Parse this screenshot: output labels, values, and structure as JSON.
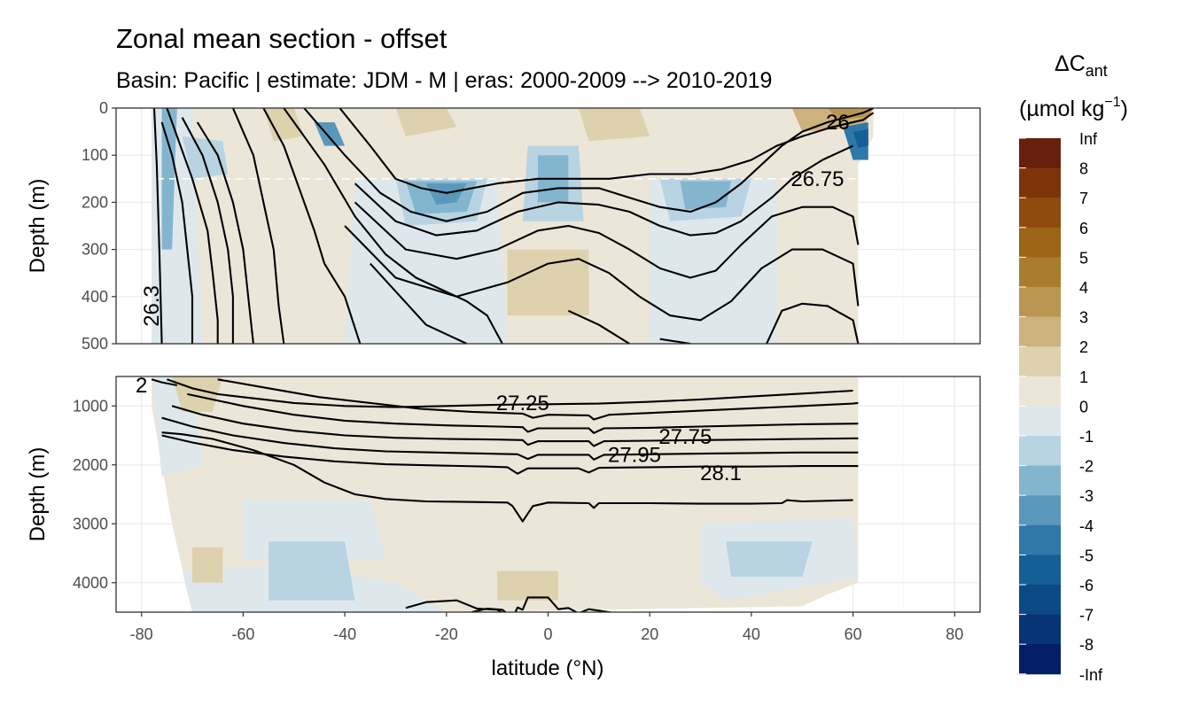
{
  "chart_data": {
    "type": "contour",
    "title": "Zonal mean section - offset",
    "subtitle": "Basin: Pacific | estimate: JDM - M | eras: 2000-2009 --> 2010-2019",
    "xlabel": "latitude (°N)",
    "ylabel": "Depth (m)",
    "x_ticks": [
      -80,
      -60,
      -40,
      -20,
      0,
      20,
      40,
      60,
      80
    ],
    "xlim": [
      -85,
      85
    ],
    "panels": [
      {
        "name": "upper",
        "ylim": [
          0,
          500
        ],
        "y_ticks": [
          0,
          100,
          200,
          300,
          400,
          500
        ],
        "y_reversed": true
      },
      {
        "name": "lower",
        "ylim": [
          500,
          4500
        ],
        "y_ticks": [
          1000,
          2000,
          3000,
          4000
        ],
        "y_reversed": true
      }
    ],
    "reference_line": {
      "depth": 150,
      "style": "dashed",
      "color": "#ffffff"
    },
    "legend": {
      "title_main": "ΔC",
      "title_sub": "ant",
      "units_main": "(µmol kg",
      "units_sup": "−1",
      "units_close": ")",
      "labels": [
        "Inf",
        "8",
        "7",
        "6",
        "5",
        "4",
        "3",
        "2",
        "1",
        "0",
        "-1",
        "-2",
        "-3",
        "-4",
        "-5",
        "-6",
        "-7",
        "-8",
        "-Inf"
      ],
      "colors": [
        "#67200d",
        "#7e3409",
        "#8f4b0e",
        "#9b6417",
        "#a87d2e",
        "#ba9652",
        "#cdb27e",
        "#ded1ad",
        "#ece6d9",
        "#dee8ec",
        "#b8d3e2",
        "#84b5cf",
        "#5a98bb",
        "#2f79a9",
        "#146096",
        "#0c4a86",
        "#073475",
        "#031e66"
      ]
    },
    "contour_labels": [
      {
        "text": "26",
        "panel": "upper",
        "lat": 57,
        "depth": 30
      },
      {
        "text": "26.75",
        "panel": "upper",
        "lat": 53,
        "depth": 150
      },
      {
        "text": "26.3",
        "panel": "upper",
        "lat": -78,
        "depth": 420
      },
      {
        "text": "27.25",
        "panel": "lower",
        "lat": -5,
        "depth": 950
      },
      {
        "text": "27.75",
        "panel": "lower",
        "lat": 27,
        "depth": 1520
      },
      {
        "text": "27.95",
        "panel": "lower",
        "lat": 17,
        "depth": 1830
      },
      {
        "text": "28.1",
        "panel": "lower",
        "lat": 34,
        "depth": 2140
      },
      {
        "text": "2",
        "panel": "lower",
        "lat": -80,
        "depth": 650
      }
    ],
    "contours_upper": [
      [
        [
          -77.5,
          0
        ],
        [
          -77,
          120
        ],
        [
          -76.5,
          300
        ],
        [
          -76,
          500
        ]
      ],
      [
        [
          -76,
          30
        ],
        [
          -74,
          100
        ],
        [
          -72,
          200
        ],
        [
          -71,
          300
        ],
        [
          -70,
          400
        ],
        [
          -70,
          500
        ]
      ],
      [
        [
          -75,
          0
        ],
        [
          -73,
          60
        ],
        [
          -70,
          150
        ],
        [
          -67,
          260
        ],
        [
          -66,
          350
        ],
        [
          -65,
          450
        ],
        [
          -65,
          500
        ]
      ],
      [
        [
          -72,
          20
        ],
        [
          -68,
          100
        ],
        [
          -65,
          200
        ],
        [
          -63,
          300
        ],
        [
          -62,
          400
        ],
        [
          -62,
          500
        ]
      ],
      [
        [
          -69,
          30
        ],
        [
          -65,
          100
        ],
        [
          -62,
          200
        ],
        [
          -60,
          300
        ],
        [
          -59,
          400
        ],
        [
          -58,
          500
        ]
      ],
      [
        [
          -62,
          0
        ],
        [
          -58,
          100
        ],
        [
          -56,
          200
        ],
        [
          -54,
          300
        ],
        [
          -53,
          420
        ],
        [
          -52,
          500
        ]
      ],
      [
        [
          -56,
          0
        ],
        [
          -52,
          80
        ],
        [
          -49,
          170
        ],
        [
          -46,
          260
        ],
        [
          -44,
          330
        ],
        [
          -40,
          400
        ],
        [
          -37,
          500
        ]
      ],
      [
        [
          -52,
          0
        ],
        [
          -44,
          120
        ],
        [
          -38,
          230
        ],
        [
          -32,
          310
        ],
        [
          -26,
          360
        ],
        [
          -20,
          390
        ],
        [
          -16,
          410
        ],
        [
          -12,
          440
        ],
        [
          -9,
          500
        ]
      ],
      [
        [
          -48,
          0
        ],
        [
          -40,
          100
        ],
        [
          -33,
          180
        ],
        [
          -27,
          220
        ],
        [
          -20,
          240
        ],
        [
          -12,
          220
        ],
        [
          -5,
          180
        ],
        [
          2,
          170
        ],
        [
          10,
          170
        ],
        [
          16,
          190
        ],
        [
          22,
          210
        ],
        [
          28,
          220
        ],
        [
          33,
          200
        ],
        [
          38,
          160
        ],
        [
          42,
          120
        ],
        [
          46,
          80
        ],
        [
          50,
          50
        ],
        [
          55,
          30
        ],
        [
          62,
          10
        ],
        [
          64,
          0
        ]
      ],
      [
        [
          -41,
          0
        ],
        [
          -35,
          80
        ],
        [
          -30,
          150
        ],
        [
          -25,
          170
        ],
        [
          -20,
          180
        ],
        [
          -10,
          160
        ],
        [
          -2,
          150
        ],
        [
          5,
          150
        ],
        [
          12,
          150
        ],
        [
          20,
          140
        ],
        [
          28,
          140
        ],
        [
          34,
          130
        ],
        [
          40,
          110
        ],
        [
          45,
          80
        ],
        [
          50,
          60
        ],
        [
          56,
          40
        ],
        [
          62,
          25
        ],
        [
          64,
          10
        ]
      ],
      [
        [
          -38,
          160
        ],
        [
          -30,
          240
        ],
        [
          -22,
          270
        ],
        [
          -14,
          260
        ],
        [
          -6,
          220
        ],
        [
          2,
          200
        ],
        [
          10,
          205
        ],
        [
          16,
          220
        ],
        [
          22,
          250
        ],
        [
          28,
          270
        ],
        [
          33,
          265
        ],
        [
          38,
          240
        ],
        [
          44,
          190
        ],
        [
          48,
          150
        ],
        [
          54,
          110
        ],
        [
          58,
          90
        ],
        [
          60,
          80
        ]
      ],
      [
        [
          -38,
          200
        ],
        [
          -28,
          300
        ],
        [
          -18,
          320
        ],
        [
          -10,
          300
        ],
        [
          -2,
          260
        ],
        [
          4,
          250
        ],
        [
          10,
          265
        ],
        [
          16,
          300
        ],
        [
          22,
          340
        ],
        [
          28,
          360
        ],
        [
          33,
          345
        ],
        [
          38,
          290
        ],
        [
          44,
          230
        ],
        [
          50,
          210
        ],
        [
          56,
          210
        ],
        [
          60,
          230
        ],
        [
          61,
          290
        ]
      ],
      [
        [
          -40,
          250
        ],
        [
          -30,
          360
        ],
        [
          -18,
          400
        ],
        [
          -8,
          370
        ],
        [
          0,
          330
        ],
        [
          6,
          320
        ],
        [
          12,
          350
        ],
        [
          18,
          400
        ],
        [
          24,
          440
        ],
        [
          30,
          450
        ],
        [
          36,
          410
        ],
        [
          42,
          340
        ],
        [
          48,
          300
        ],
        [
          54,
          300
        ],
        [
          60,
          330
        ],
        [
          61,
          420
        ]
      ],
      [
        [
          -35,
          330
        ],
        [
          -24,
          460
        ],
        [
          -16,
          500
        ]
      ],
      [
        [
          4,
          430
        ],
        [
          10,
          460
        ],
        [
          16,
          500
        ]
      ],
      [
        [
          22,
          490
        ],
        [
          28,
          500
        ]
      ],
      [
        [
          43,
          500
        ],
        [
          46,
          430
        ],
        [
          50,
          415
        ],
        [
          55,
          420
        ],
        [
          60,
          450
        ],
        [
          61,
          500
        ]
      ]
    ],
    "contours_lower": [
      [
        [
          -78,
          550
        ],
        [
          -76,
          600
        ],
        [
          -73,
          650
        ]
      ],
      [
        [
          -75,
          550
        ],
        [
          -70,
          700
        ],
        [
          -65,
          800
        ],
        [
          -60,
          850
        ],
        [
          -55,
          900
        ],
        [
          -50,
          950
        ],
        [
          -40,
          1000
        ],
        [
          -30,
          1020
        ],
        [
          -20,
          1000
        ],
        [
          -10,
          980
        ],
        [
          0,
          970
        ],
        [
          10,
          960
        ],
        [
          20,
          930
        ],
        [
          30,
          890
        ],
        [
          40,
          840
        ],
        [
          50,
          790
        ],
        [
          60,
          740
        ]
      ],
      [
        [
          -65,
          550
        ],
        [
          -55,
          700
        ],
        [
          -45,
          850
        ],
        [
          -35,
          950
        ],
        [
          -25,
          1050
        ],
        [
          -15,
          1100
        ],
        [
          -5,
          1130
        ],
        [
          -3,
          1200
        ],
        [
          0,
          1150
        ],
        [
          8,
          1160
        ],
        [
          9,
          1230
        ],
        [
          12,
          1150
        ],
        [
          20,
          1120
        ],
        [
          30,
          1080
        ],
        [
          40,
          1040
        ],
        [
          50,
          1000
        ],
        [
          60,
          960
        ],
        [
          61,
          950
        ]
      ],
      [
        [
          -71,
          800
        ],
        [
          -60,
          1000
        ],
        [
          -50,
          1150
        ],
        [
          -40,
          1250
        ],
        [
          -30,
          1300
        ],
        [
          -20,
          1330
        ],
        [
          -10,
          1350
        ],
        [
          -5,
          1360
        ],
        [
          -4,
          1440
        ],
        [
          -2,
          1380
        ],
        [
          8,
          1380
        ],
        [
          9,
          1460
        ],
        [
          11,
          1380
        ],
        [
          20,
          1370
        ],
        [
          30,
          1350
        ],
        [
          40,
          1330
        ],
        [
          50,
          1310
        ],
        [
          61,
          1300
        ]
      ],
      [
        [
          -74,
          1000
        ],
        [
          -68,
          1150
        ],
        [
          -60,
          1300
        ],
        [
          -50,
          1420
        ],
        [
          -40,
          1500
        ],
        [
          -30,
          1540
        ],
        [
          -20,
          1560
        ],
        [
          -10,
          1570
        ],
        [
          -5,
          1580
        ],
        [
          -4,
          1660
        ],
        [
          -2,
          1600
        ],
        [
          8,
          1600
        ],
        [
          9,
          1680
        ],
        [
          11,
          1600
        ],
        [
          20,
          1590
        ],
        [
          30,
          1580
        ],
        [
          40,
          1570
        ],
        [
          50,
          1560
        ],
        [
          61,
          1550
        ]
      ],
      [
        [
          -76,
          1200
        ],
        [
          -70,
          1350
        ],
        [
          -62,
          1500
        ],
        [
          -52,
          1630
        ],
        [
          -42,
          1720
        ],
        [
          -32,
          1770
        ],
        [
          -22,
          1790
        ],
        [
          -12,
          1810
        ],
        [
          -6,
          1820
        ],
        [
          -4,
          1900
        ],
        [
          -2,
          1830
        ],
        [
          8,
          1830
        ],
        [
          9,
          1910
        ],
        [
          11,
          1830
        ],
        [
          20,
          1820
        ],
        [
          30,
          1810
        ],
        [
          40,
          1800
        ],
        [
          50,
          1790
        ],
        [
          61,
          1790
        ]
      ],
      [
        [
          -76,
          1500
        ],
        [
          -70,
          1620
        ],
        [
          -62,
          1750
        ],
        [
          -52,
          1860
        ],
        [
          -42,
          1940
        ],
        [
          -32,
          1990
        ],
        [
          -22,
          2010
        ],
        [
          -12,
          2030
        ],
        [
          -8,
          2040
        ],
        [
          -6,
          2150
        ],
        [
          -4,
          2060
        ],
        [
          6,
          2060
        ],
        [
          8,
          2130
        ],
        [
          10,
          2050
        ],
        [
          20,
          2040
        ],
        [
          30,
          2030
        ],
        [
          40,
          2030
        ],
        [
          50,
          2020
        ],
        [
          61,
          2020
        ]
      ],
      [
        [
          -76,
          1450
        ],
        [
          -72,
          1480
        ],
        [
          -66,
          1560
        ],
        [
          -58,
          1750
        ],
        [
          -50,
          2000
        ],
        [
          -44,
          2300
        ],
        [
          -38,
          2500
        ],
        [
          -32,
          2580
        ],
        [
          -24,
          2620
        ],
        [
          -16,
          2630
        ],
        [
          -8,
          2640
        ],
        [
          -7,
          2700
        ],
        [
          -5,
          2960
        ],
        [
          -3,
          2700
        ],
        [
          0,
          2640
        ],
        [
          8,
          2650
        ],
        [
          9,
          2730
        ],
        [
          10,
          2650
        ],
        [
          20,
          2650
        ],
        [
          30,
          2660
        ],
        [
          40,
          2660
        ],
        [
          46,
          2650
        ],
        [
          47,
          2600
        ],
        [
          50,
          2620
        ],
        [
          60,
          2600
        ]
      ],
      [
        [
          -15,
          4500
        ],
        [
          -12,
          4440
        ],
        [
          -9,
          4460
        ],
        [
          -7,
          4600
        ],
        [
          -6,
          4420
        ],
        [
          -5,
          4460
        ],
        [
          -4,
          4250
        ],
        [
          0,
          4250
        ],
        [
          2,
          4450
        ],
        [
          4,
          4430
        ],
        [
          6,
          4520
        ],
        [
          8,
          4450
        ],
        [
          12,
          4500
        ],
        [
          16,
          4560
        ]
      ],
      [
        [
          -28,
          4430
        ],
        [
          -24,
          4330
        ],
        [
          -18,
          4300
        ],
        [
          -14,
          4440
        ],
        [
          -10,
          4460
        ],
        [
          -8,
          4560
        ]
      ]
    ]
  }
}
